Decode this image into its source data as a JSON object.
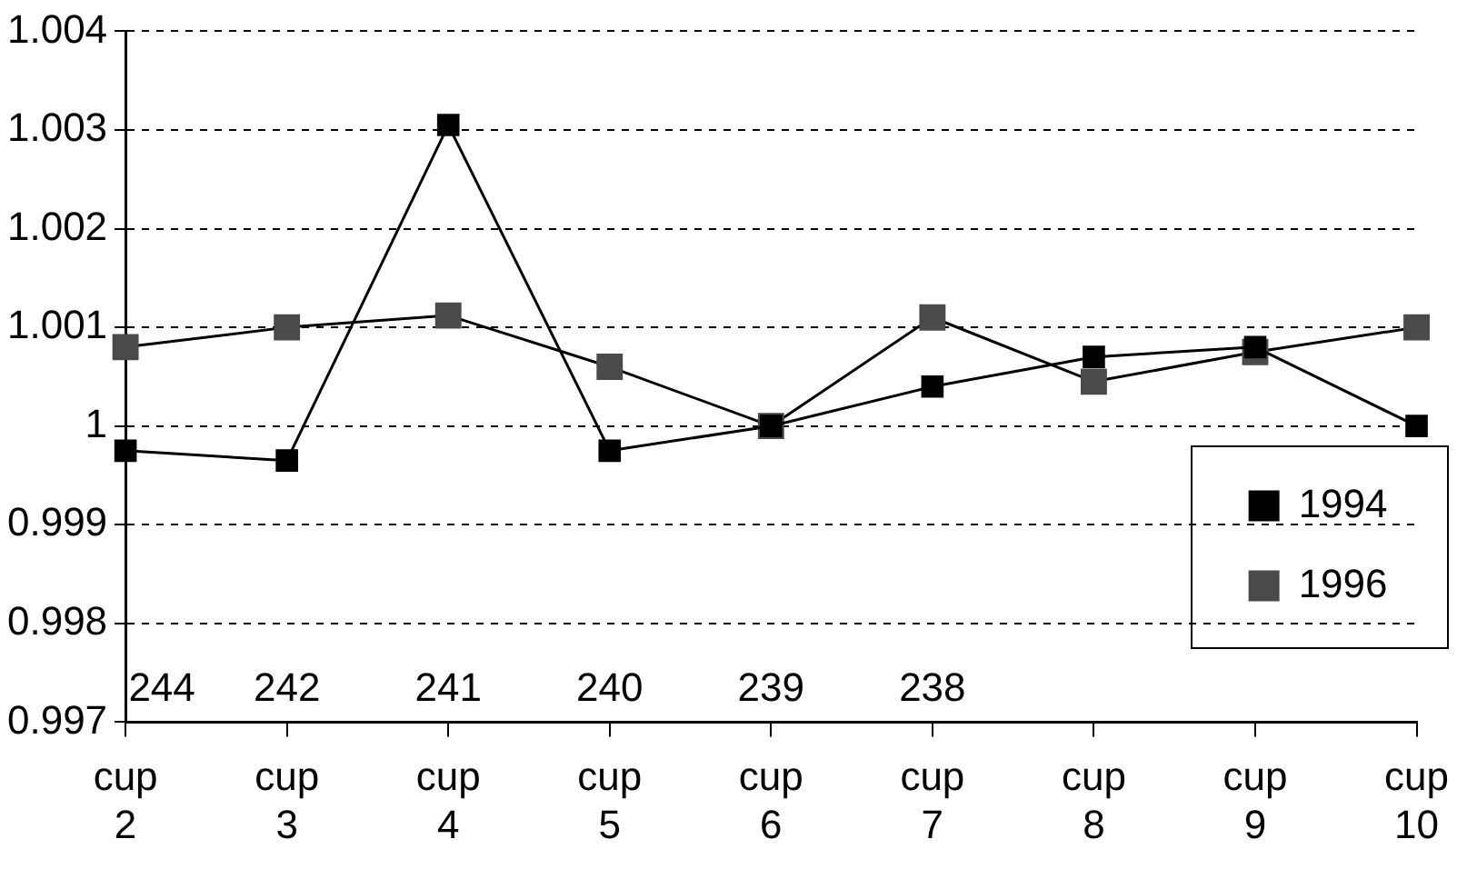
{
  "chart_data": {
    "type": "line",
    "categories": [
      "cup 2",
      "cup 3",
      "cup 4",
      "cup 5",
      "cup 6",
      "cup 7",
      "cup 8",
      "cup 9",
      "cup 10"
    ],
    "series": [
      {
        "name": "1994",
        "color": "#000000",
        "values": [
          0.99975,
          0.99965,
          1.00305,
          0.99975,
          1.0,
          1.0004,
          1.0007,
          1.0008,
          1.0
        ]
      },
      {
        "name": "1996",
        "color": "#4a4a4a",
        "values": [
          1.0008,
          1.001,
          1.00112,
          1.0006,
          1.0,
          1.0011,
          1.00045,
          1.00075,
          1.001
        ]
      }
    ],
    "ylim": [
      0.997,
      1.004
    ],
    "yticks": [
      {
        "value": 0.997,
        "label": "0.997"
      },
      {
        "value": 0.998,
        "label": "0.998"
      },
      {
        "value": 0.999,
        "label": "0.999"
      },
      {
        "value": 1,
        "label": "1"
      },
      {
        "value": 1.001,
        "label": "1.001"
      },
      {
        "value": 1.002,
        "label": "1.002"
      },
      {
        "value": 1.003,
        "label": "1.003"
      },
      {
        "value": 1.004,
        "label": "1.004"
      }
    ],
    "annotations": [
      "244",
      "242",
      "241",
      "240",
      "239",
      "238"
    ],
    "grid": "y",
    "legend": "bottom right",
    "marker": "square",
    "line_style": "solid"
  }
}
